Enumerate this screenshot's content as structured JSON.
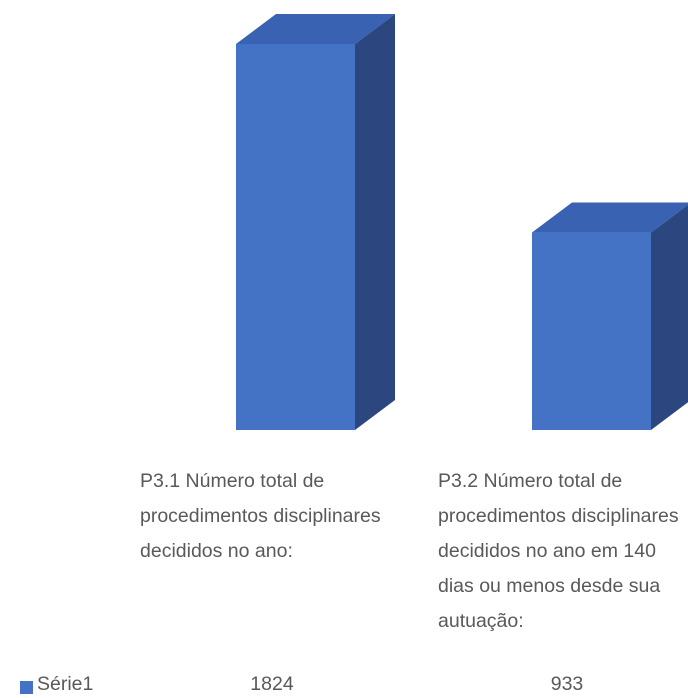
{
  "chart_data": {
    "type": "bar",
    "categories": [
      "P3.1 Número total de procedimentos disciplinares decididos no ano:",
      "P3.2 Número total de procedimentos disciplinares decididos no ano em 140 dias ou menos desde sua autuação:"
    ],
    "series": [
      {
        "name": "Série1",
        "color": "#4472c4",
        "values": [
          1824,
          933
        ]
      }
    ]
  }
}
